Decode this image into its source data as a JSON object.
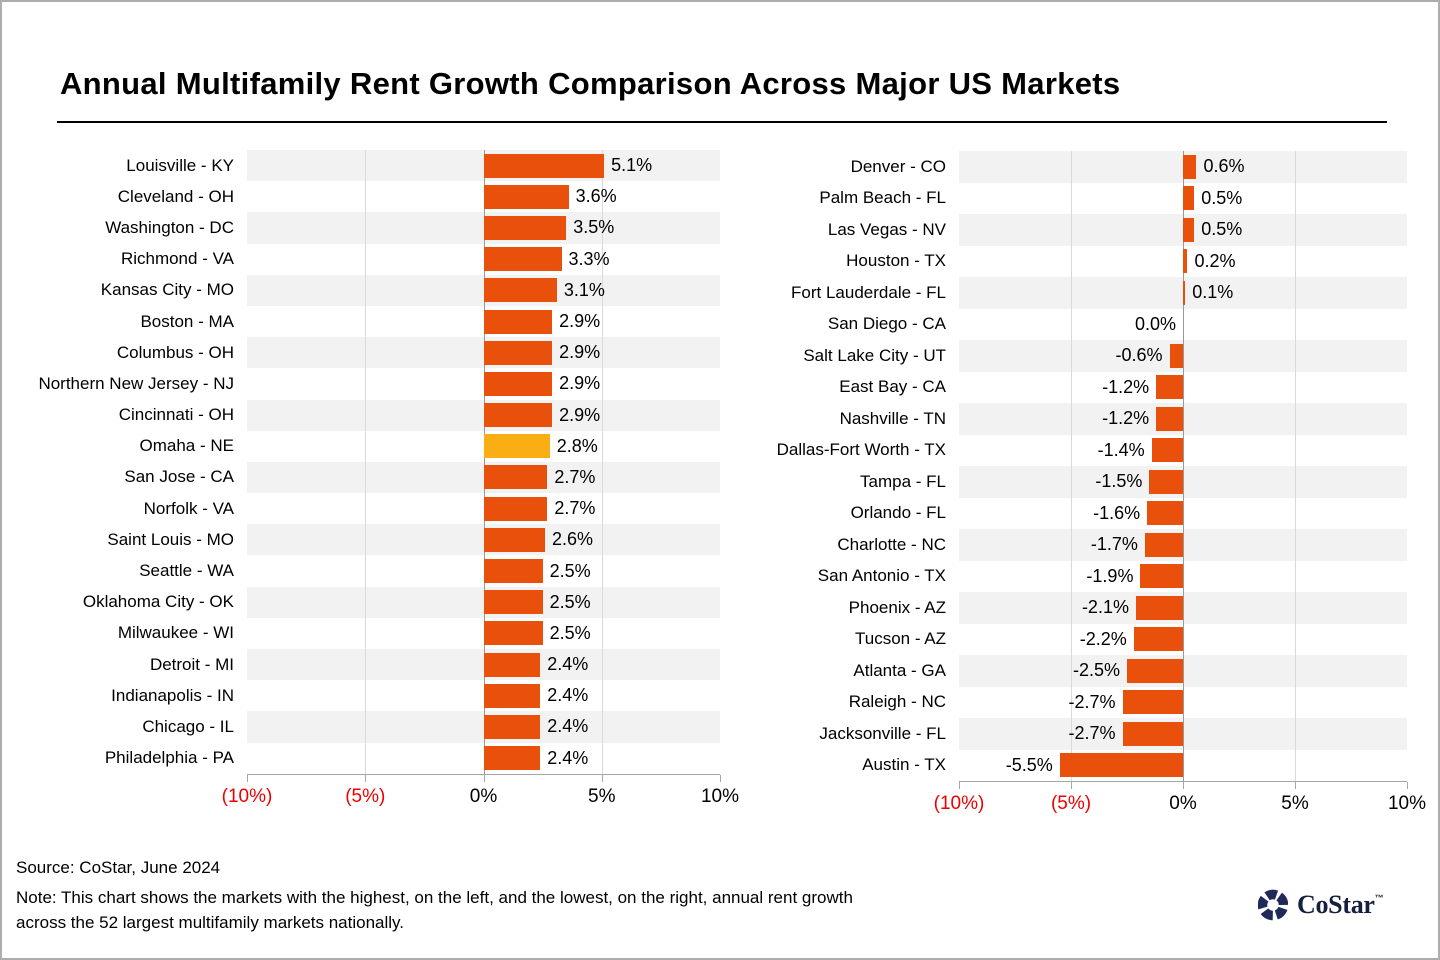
{
  "title": "Annual Multifamily Rent Growth Comparison Across Major US Markets",
  "chart_data": [
    {
      "type": "bar",
      "orientation": "horizontal",
      "position": "left",
      "categories": [
        "Louisville - KY",
        "Cleveland - OH",
        "Washington - DC",
        "Richmond - VA",
        "Kansas City - MO",
        "Boston - MA",
        "Columbus - OH",
        "Northern New Jersey - NJ",
        "Cincinnati - OH",
        "Omaha - NE",
        "San Jose - CA",
        "Norfolk - VA",
        "Saint Louis - MO",
        "Seattle - WA",
        "Oklahoma City - OK",
        "Milwaukee - WI",
        "Detroit - MI",
        "Indianapolis - IN",
        "Chicago - IL",
        "Philadelphia - PA"
      ],
      "values": [
        5.1,
        3.6,
        3.5,
        3.3,
        3.1,
        2.9,
        2.9,
        2.9,
        2.9,
        2.8,
        2.7,
        2.7,
        2.6,
        2.5,
        2.5,
        2.5,
        2.4,
        2.4,
        2.4,
        2.4
      ],
      "value_labels": [
        "5.1%",
        "3.6%",
        "3.5%",
        "3.3%",
        "3.1%",
        "2.9%",
        "2.9%",
        "2.9%",
        "2.9%",
        "2.8%",
        "2.7%",
        "2.7%",
        "2.6%",
        "2.5%",
        "2.5%",
        "2.5%",
        "2.4%",
        "2.4%",
        "2.4%",
        "2.4%"
      ],
      "xlim": [
        -10,
        10
      ],
      "grid": "vertical-light",
      "highlight": {
        "index": 9
      }
    },
    {
      "type": "bar",
      "orientation": "horizontal",
      "position": "right",
      "categories": [
        "Denver - CO",
        "Palm Beach - FL",
        "Las Vegas - NV",
        "Houston - TX",
        "Fort Lauderdale - FL",
        "San Diego - CA",
        "Salt Lake City - UT",
        "East Bay - CA",
        "Nashville - TN",
        "Dallas-Fort Worth - TX",
        "Tampa - FL",
        "Orlando - FL",
        "Charlotte - NC",
        "San Antonio - TX",
        "Phoenix - AZ",
        "Tucson - AZ",
        "Atlanta - GA",
        "Raleigh - NC",
        "Jacksonville - FL",
        "Austin - TX"
      ],
      "values": [
        0.6,
        0.5,
        0.5,
        0.2,
        0.1,
        0.0,
        -0.6,
        -1.2,
        -1.2,
        -1.4,
        -1.5,
        -1.6,
        -1.7,
        -1.9,
        -2.1,
        -2.2,
        -2.5,
        -2.7,
        -2.7,
        -5.5
      ],
      "value_labels": [
        "0.6%",
        "0.5%",
        "0.5%",
        "0.2%",
        "0.1%",
        "0.0%",
        "-0.6%",
        "-1.2%",
        "-1.2%",
        "-1.4%",
        "-1.5%",
        "-1.6%",
        "-1.7%",
        "-1.9%",
        "-2.1%",
        "-2.2%",
        "-2.5%",
        "-2.7%",
        "-2.7%",
        "-5.5%"
      ],
      "xlim": [
        -10,
        10
      ],
      "grid": "vertical-light",
      "highlight": null
    }
  ],
  "axis_ticks": [
    {
      "label": "(10%)",
      "red": true
    },
    {
      "label": "(5%)",
      "red": true
    },
    {
      "label": "0%",
      "red": false
    },
    {
      "label": "5%",
      "red": false
    },
    {
      "label": "10%",
      "red": false
    }
  ],
  "footer": {
    "source": "Source: CoStar, June 2024",
    "note": "Note: This chart shows the markets with the highest, on the left, and the lowest, on the right, annual rent growth across the 52 largest multifamily markets nationally."
  },
  "logo": {
    "text": "CoStar",
    "tm": "™"
  },
  "colors": {
    "bar": "#E8500B",
    "highlight": "#F9AE13",
    "band": "#F2F2F2",
    "gridline": "#D9D9D9",
    "zero_line": "#999999",
    "axis_line": "#A6A6A6",
    "negative_tick_text": "#EE0000",
    "logo_navy": "#1F2A5A"
  }
}
